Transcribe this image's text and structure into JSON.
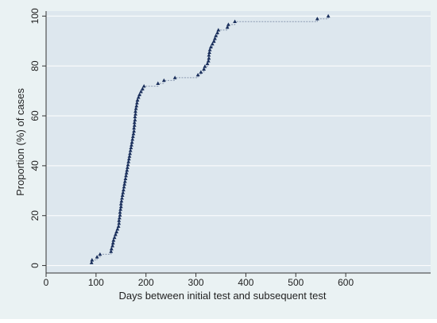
{
  "chart_data": {
    "type": "scatter",
    "title": "",
    "xlabel": "Days between initial test and subsequent test",
    "ylabel": "Proportion (%) of cases",
    "xlim": [
      0,
      770
    ],
    "ylim": [
      -3,
      102
    ],
    "xticks": [
      0,
      100,
      200,
      300,
      400,
      500,
      600
    ],
    "yticks": [
      0,
      20,
      40,
      60,
      80,
      100
    ],
    "grid": "horizontal",
    "step_line": true,
    "colors": {
      "outer_bg": "#eaf2f3",
      "plot_bg": "#dde7ee",
      "marker": "#1a2f5c",
      "line": "#8a99b0",
      "grid": "#ffffff"
    },
    "series": [
      {
        "x": [
          91,
          92,
          102,
          108,
          130,
          131,
          133,
          134,
          135,
          137,
          139,
          141,
          143,
          145,
          146,
          146,
          147,
          148,
          148,
          149,
          150,
          150,
          151,
          152,
          153,
          154,
          155,
          156,
          157,
          158,
          159,
          160,
          161,
          162,
          163,
          164,
          165,
          166,
          167,
          168,
          169,
          170,
          171,
          172,
          173,
          174,
          175,
          176,
          176,
          177,
          177,
          178,
          178,
          179,
          179,
          180,
          181,
          182,
          183,
          185,
          187,
          190,
          193,
          196,
          224,
          236,
          258,
          304,
          310,
          316,
          318,
          323,
          325,
          326,
          326,
          327,
          328,
          330,
          333,
          336,
          338,
          340,
          343,
          345,
          363,
          365,
          378,
          543,
          565
        ],
        "y": [
          1.1,
          2.2,
          3.4,
          4.5,
          5.6,
          6.7,
          7.9,
          9.0,
          10.1,
          11.2,
          12.4,
          13.5,
          14.6,
          15.7,
          16.9,
          18.0,
          19.1,
          20.2,
          21.3,
          22.5,
          23.6,
          24.7,
          25.8,
          27.0,
          28.1,
          29.2,
          30.3,
          31.5,
          32.6,
          33.7,
          34.8,
          36.0,
          37.1,
          38.2,
          39.3,
          40.4,
          41.6,
          42.7,
          43.8,
          44.9,
          46.1,
          47.2,
          48.3,
          49.4,
          50.6,
          51.7,
          52.8,
          53.9,
          55.1,
          56.2,
          57.3,
          58.4,
          59.6,
          60.7,
          61.8,
          62.9,
          64.0,
          65.2,
          66.3,
          67.4,
          68.5,
          69.7,
          70.8,
          71.9,
          73.0,
          74.2,
          75.3,
          76.4,
          77.5,
          78.7,
          79.8,
          80.9,
          82.0,
          83.1,
          84.3,
          85.4,
          86.5,
          87.6,
          88.8,
          89.9,
          91.0,
          92.1,
          93.3,
          94.4,
          95.5,
          96.6,
          97.8,
          98.9,
          100.0
        ]
      }
    ]
  }
}
